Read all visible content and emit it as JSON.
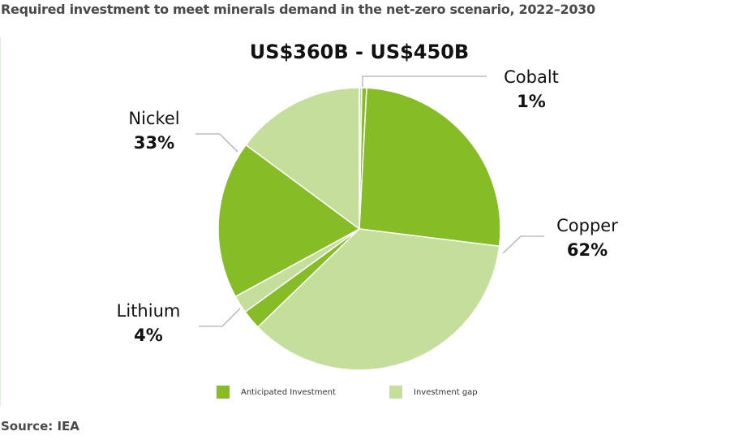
{
  "title": "Required investment to meet minerals demand in the net-zero scenario, 2022–2030",
  "source": "Source: IEA",
  "colors": {
    "anticipated": "#86BC25",
    "gap": "#C4DF9B",
    "leader": "#b0b0b0"
  },
  "chart_data": {
    "type": "pie",
    "title": "Required investment to meet minerals demand in the net-zero scenario, 2022–2030",
    "subtitle": "US$360B - US$450B",
    "categories": [
      "Cobalt",
      "Copper",
      "Lithium",
      "Nickel"
    ],
    "values": [
      1,
      62,
      4,
      33
    ],
    "unit": "%",
    "series": [
      {
        "name": "Anticipated Investment",
        "values": [
          0.6,
          26,
          2.2,
          18
        ]
      },
      {
        "name": "Investment gap",
        "values": [
          0.3,
          36,
          2,
          15
        ]
      }
    ],
    "slices": [
      {
        "mineral": "Cobalt",
        "type": "gap",
        "start_deg": 0,
        "end_deg": 1
      },
      {
        "mineral": "Cobalt",
        "type": "anticipated",
        "start_deg": 1,
        "end_deg": 3
      },
      {
        "mineral": "Copper",
        "type": "anticipated",
        "start_deg": 3,
        "end_deg": 97
      },
      {
        "mineral": "Copper",
        "type": "gap",
        "start_deg": 97,
        "end_deg": 226
      },
      {
        "mineral": "Lithium",
        "type": "anticipated",
        "start_deg": 226,
        "end_deg": 234
      },
      {
        "mineral": "Lithium",
        "type": "gap",
        "start_deg": 234,
        "end_deg": 241.4
      },
      {
        "mineral": "Nickel",
        "type": "anticipated",
        "start_deg": 241.4,
        "end_deg": 306.5
      },
      {
        "mineral": "Nickel",
        "type": "gap",
        "start_deg": 306.5,
        "end_deg": 360
      }
    ],
    "legend": [
      "Anticipated Investment",
      "Investment gap"
    ],
    "legend_position": "bottom"
  },
  "labels": {
    "cobalt": {
      "name": "Cobalt",
      "pct": "1%"
    },
    "copper": {
      "name": "Copper",
      "pct": "62%"
    },
    "lithium": {
      "name": "Lithium",
      "pct": "4%"
    },
    "nickel": {
      "name": "Nickel",
      "pct": "33%"
    }
  },
  "legend": {
    "anticipated": "Anticipated Investment",
    "gap": "Investment gap"
  }
}
